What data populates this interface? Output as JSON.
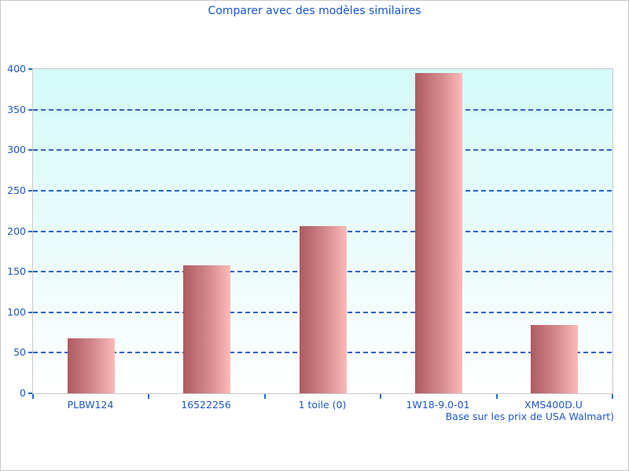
{
  "page": {
    "background": "#ffffff",
    "border_color": "#c8c8c8"
  },
  "chart_data": {
    "type": "bar",
    "title": "Comparer avec des modèles similaires",
    "footnote": "Base sur les prix de USA Walmart)",
    "categories": [
      "PLBW124",
      "16522256",
      "1 toile (0)",
      "1W18-9.0-01",
      "XMS400D.U"
    ],
    "values": [
      68,
      158,
      206,
      395,
      84
    ],
    "xlabel": "",
    "ylabel": "",
    "ylim": [
      0,
      400
    ],
    "ytick_step": 50,
    "ytick_labels": [
      "0",
      "50",
      "100",
      "150",
      "200",
      "250",
      "300",
      "350",
      "400"
    ],
    "grid": "dashed-horizontal",
    "legend": "none",
    "colors": {
      "title_text": "#1956cc",
      "axis_text": "#1f57c4",
      "gridline": "#2f62c4",
      "tick": "#2b6cc8",
      "plot_border": "#c8c8c8",
      "plot_bg_top": "#d5fafa",
      "plot_bg_bottom": "#ffffff",
      "bar_gradient_left": "#ad5a60",
      "bar_gradient_right": "#fcbaba"
    }
  }
}
